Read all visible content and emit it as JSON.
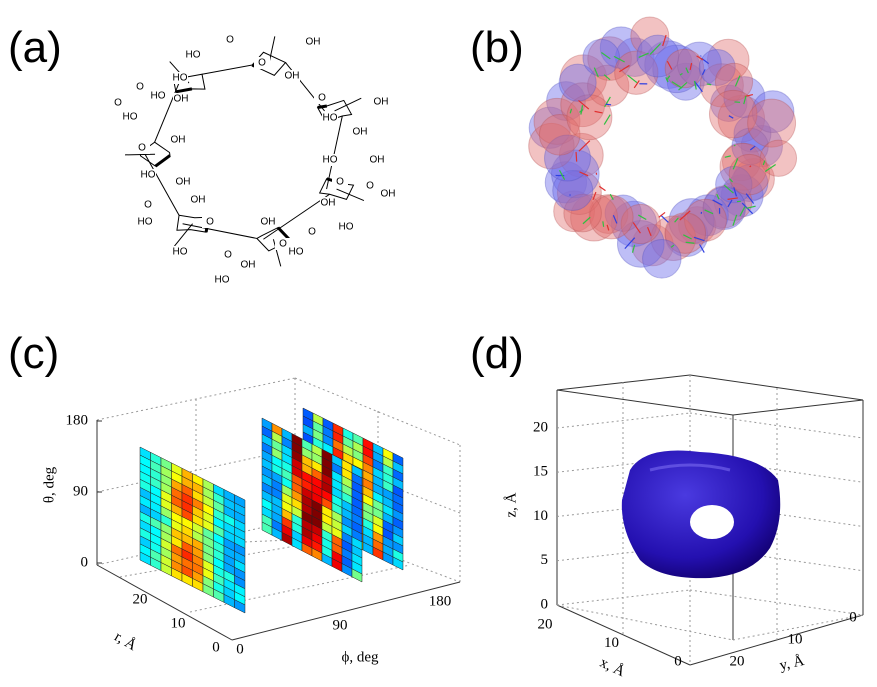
{
  "panels": [
    {
      "label": "(a)",
      "atoms": [
        "OH",
        "O",
        "HO",
        "O",
        "HO",
        "OH",
        "O",
        "HO",
        "OH",
        "O",
        "OH",
        "HO",
        "O",
        "O",
        "OH",
        "HO",
        "OH",
        "O",
        "OH",
        "HO",
        "O",
        "HO",
        "OH",
        "O",
        "HO",
        "O",
        "OH",
        "HO",
        "O",
        "OH",
        "HO",
        "OH",
        "O",
        "OH",
        "HO",
        "O",
        "OH",
        "HO"
      ]
    },
    {
      "label": "(b)"
    },
    {
      "label": "(c)",
      "theta_axis": {
        "title": "θ, deg",
        "ticks": [
          0,
          90,
          180
        ]
      },
      "r_axis": {
        "title": "r, Å",
        "ticks": [
          0,
          10,
          20
        ]
      },
      "phi_axis": {
        "title": "ϕ, deg",
        "ticks": [
          0,
          90,
          180
        ]
      }
    },
    {
      "label": "(d)",
      "z_axis": {
        "title": "z, Å",
        "ticks": [
          0,
          5,
          10,
          15,
          20
        ]
      },
      "x_axis": {
        "title": "x, Å",
        "ticks": [
          0,
          10,
          20
        ]
      },
      "y_axis": {
        "title": "y, Å",
        "ticks": [
          0,
          10,
          20
        ]
      }
    }
  ]
}
